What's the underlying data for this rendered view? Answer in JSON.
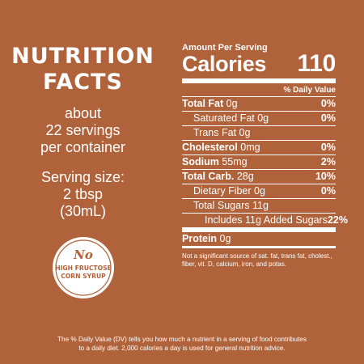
{
  "left": {
    "heading_line1": "NUTRITION",
    "heading_line2": "FACTS",
    "servings_line1": "about",
    "servings_line2": "22 servings",
    "servings_line3": "per container",
    "serving_size_line1": "Serving size:",
    "serving_size_line2": "2 tbsp",
    "serving_size_line3": "(30mL)"
  },
  "badge": {
    "top": "No",
    "middle": "HIGH FRUCTOSE",
    "bottom": "CORN SYRUP",
    "icon": "no-hfcs-badge-icon"
  },
  "panel": {
    "amount_per_serving": "Amount Per Serving",
    "calories_label": "Calories",
    "calories_value": "110",
    "daily_value_header": "% Daily Value",
    "rows": [
      {
        "label": "Total Fat",
        "amount": "0g",
        "pct": "0%"
      },
      {
        "label": "Saturated Fat",
        "amount": "0g",
        "pct": "0%"
      },
      {
        "label": "Trans",
        "amount": "Fat 0g",
        "pct": ""
      },
      {
        "label": "Cholesterol",
        "amount": "0mg",
        "pct": "0%"
      },
      {
        "label": "Sodium",
        "amount": "55mg",
        "pct": "2%"
      },
      {
        "label": "Total Carb.",
        "amount": "28g",
        "pct": "10%"
      },
      {
        "label": "Dietary Fiber",
        "amount": "0g",
        "pct": "0%"
      },
      {
        "label": "Total Sugars",
        "amount": "11g",
        "pct": ""
      },
      {
        "label": "Includes 11g Added Sugars",
        "amount": "",
        "pct": "22%"
      },
      {
        "label": "Protein",
        "amount": "0g",
        "pct": ""
      }
    ],
    "note": "Not a significant source of sat. fat, trans fat, cholest., fiber, vit. D, calcium, iron, and potas."
  },
  "footer": {
    "line1": "The % Daily Value (DV) tells you how much a nutrient in a serving of food contributes",
    "line2": "to a daily diet. 2,000 calories a day is used for general nutrition advice."
  }
}
